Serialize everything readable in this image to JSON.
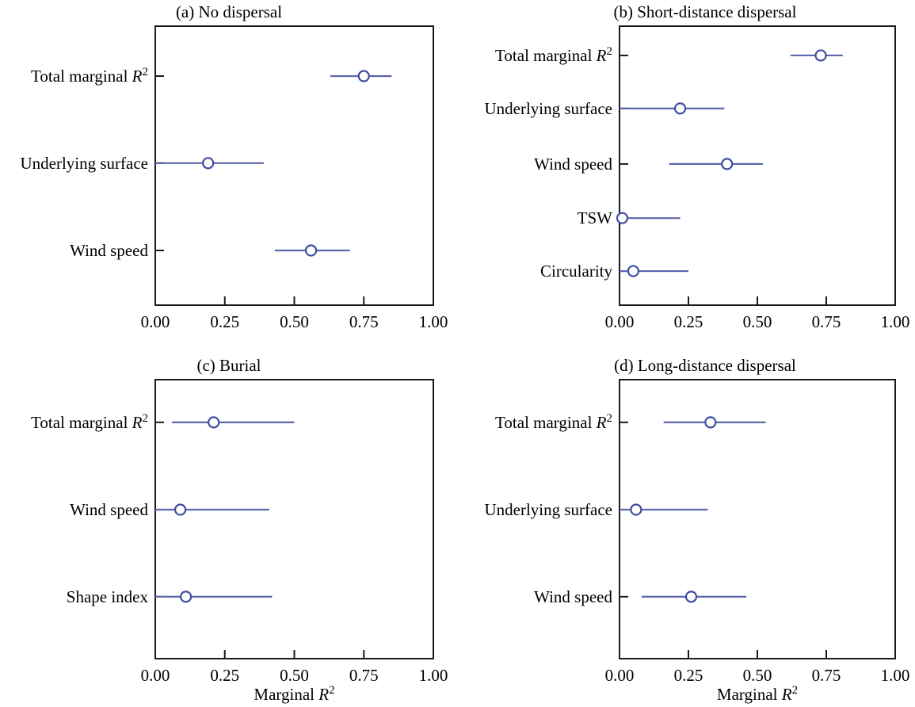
{
  "figure": {
    "background": "#ffffff",
    "shared_xlabel": "Marginal R²"
  },
  "colors": {
    "marker_stroke": "#3f4da1",
    "marker_fill": "#ffffff",
    "interval_line": "#5c66ac",
    "axis": "#1a1a1a",
    "text": "#000000"
  },
  "chart_data": [
    {
      "type": "scatter",
      "panel_id": "a",
      "title": "(a) No dispersal",
      "xlabel": "",
      "xlim": [
        0,
        1
      ],
      "xtick_values": [
        0,
        0.25,
        0.5,
        0.75,
        1
      ],
      "xtick_labels": [
        "0.00",
        "0.25",
        "0.50",
        "0.75",
        "1.00"
      ],
      "grid": false,
      "legend": false,
      "row_fractions": [
        0.179,
        0.491,
        0.804
      ],
      "points": [
        {
          "label": "Total marginal R²",
          "estimate": 0.75,
          "ci_low": 0.63,
          "ci_high": 0.85
        },
        {
          "label": "Underlying surface",
          "estimate": 0.19,
          "ci_low": 0.0,
          "ci_high": 0.39
        },
        {
          "label": "Wind speed",
          "estimate": 0.56,
          "ci_low": 0.43,
          "ci_high": 0.7
        }
      ]
    },
    {
      "type": "scatter",
      "panel_id": "b",
      "title": "(b) Short-distance dispersal",
      "xlabel": "",
      "xlim": [
        0,
        1
      ],
      "xtick_values": [
        0,
        0.25,
        0.5,
        0.75,
        1
      ],
      "xtick_labels": [
        "0.00",
        "0.25",
        "0.50",
        "0.75",
        "1.00"
      ],
      "grid": false,
      "legend": false,
      "row_fractions": [
        0.105,
        0.295,
        0.494,
        0.688,
        0.878
      ],
      "points": [
        {
          "label": "Total marginal R²",
          "estimate": 0.73,
          "ci_low": 0.62,
          "ci_high": 0.81
        },
        {
          "label": "Underlying surface",
          "estimate": 0.22,
          "ci_low": 0.0,
          "ci_high": 0.38
        },
        {
          "label": "Wind speed",
          "estimate": 0.39,
          "ci_low": 0.18,
          "ci_high": 0.52
        },
        {
          "label": "TSW",
          "estimate": 0.01,
          "ci_low": 0.0,
          "ci_high": 0.22
        },
        {
          "label": "Circularity",
          "estimate": 0.05,
          "ci_low": 0.0,
          "ci_high": 0.25
        }
      ]
    },
    {
      "type": "scatter",
      "panel_id": "c",
      "title": "(c) Burial",
      "xlabel": "Marginal R²",
      "xlim": [
        0,
        1
      ],
      "xtick_values": [
        0,
        0.25,
        0.5,
        0.75,
        1
      ],
      "xtick_labels": [
        "0.00",
        "0.25",
        "0.50",
        "0.75",
        "1.00"
      ],
      "grid": false,
      "legend": false,
      "row_fractions": [
        0.153,
        0.466,
        0.778
      ],
      "points": [
        {
          "label": "Total marginal R²",
          "estimate": 0.21,
          "ci_low": 0.06,
          "ci_high": 0.5
        },
        {
          "label": "Wind speed",
          "estimate": 0.09,
          "ci_low": 0.0,
          "ci_high": 0.41
        },
        {
          "label": "Shape index",
          "estimate": 0.11,
          "ci_low": 0.0,
          "ci_high": 0.42
        }
      ]
    },
    {
      "type": "scatter",
      "panel_id": "d",
      "title": "(d) Long-distance dispersal",
      "xlabel": "Marginal R²",
      "xlim": [
        0,
        1
      ],
      "xtick_values": [
        0,
        0.25,
        0.5,
        0.75,
        1
      ],
      "xtick_labels": [
        "0.00",
        "0.25",
        "0.50",
        "0.75",
        "1.00"
      ],
      "grid": false,
      "legend": false,
      "row_fractions": [
        0.153,
        0.466,
        0.778
      ],
      "points": [
        {
          "label": "Total marginal R²",
          "estimate": 0.33,
          "ci_low": 0.16,
          "ci_high": 0.53
        },
        {
          "label": "Underlying surface",
          "estimate": 0.06,
          "ci_low": 0.0,
          "ci_high": 0.32
        },
        {
          "label": "Wind speed",
          "estimate": 0.26,
          "ci_low": 0.08,
          "ci_high": 0.46
        }
      ]
    }
  ]
}
